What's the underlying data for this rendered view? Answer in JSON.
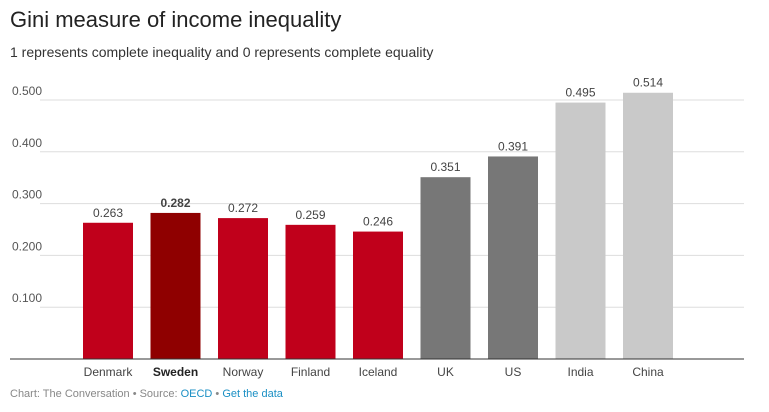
{
  "chart_data": {
    "type": "bar",
    "title": "Gini measure of income inequality",
    "subtitle": "1 represents complete inequality and 0 represents complete equality",
    "categories": [
      "Denmark",
      "Sweden",
      "Norway",
      "Finland",
      "Iceland",
      "UK",
      "US",
      "India",
      "China"
    ],
    "values": [
      0.263,
      0.282,
      0.272,
      0.259,
      0.246,
      0.351,
      0.391,
      0.495,
      0.514
    ],
    "value_labels": [
      "0.263",
      "0.282",
      "0.272",
      "0.259",
      "0.246",
      "0.351",
      "0.391",
      "0.495",
      "0.514"
    ],
    "colors": [
      "#c0001b",
      "#8f0000",
      "#c0001b",
      "#c0001b",
      "#c0001b",
      "#777777",
      "#777777",
      "#c9c9c9",
      "#c9c9c9"
    ],
    "highlight": "Sweden",
    "yticks": [
      0.1,
      0.2,
      0.3,
      0.4,
      0.5
    ],
    "ytick_labels": [
      "0.100",
      "0.200",
      "0.300",
      "0.400",
      "0.500"
    ],
    "ylim": [
      0,
      0.52
    ],
    "grid": true,
    "xlabel": "",
    "ylabel": ""
  },
  "footer": {
    "prefix": "Chart: The Conversation • Source: ",
    "source": "OECD",
    "separator": " • ",
    "link": "Get the data"
  }
}
